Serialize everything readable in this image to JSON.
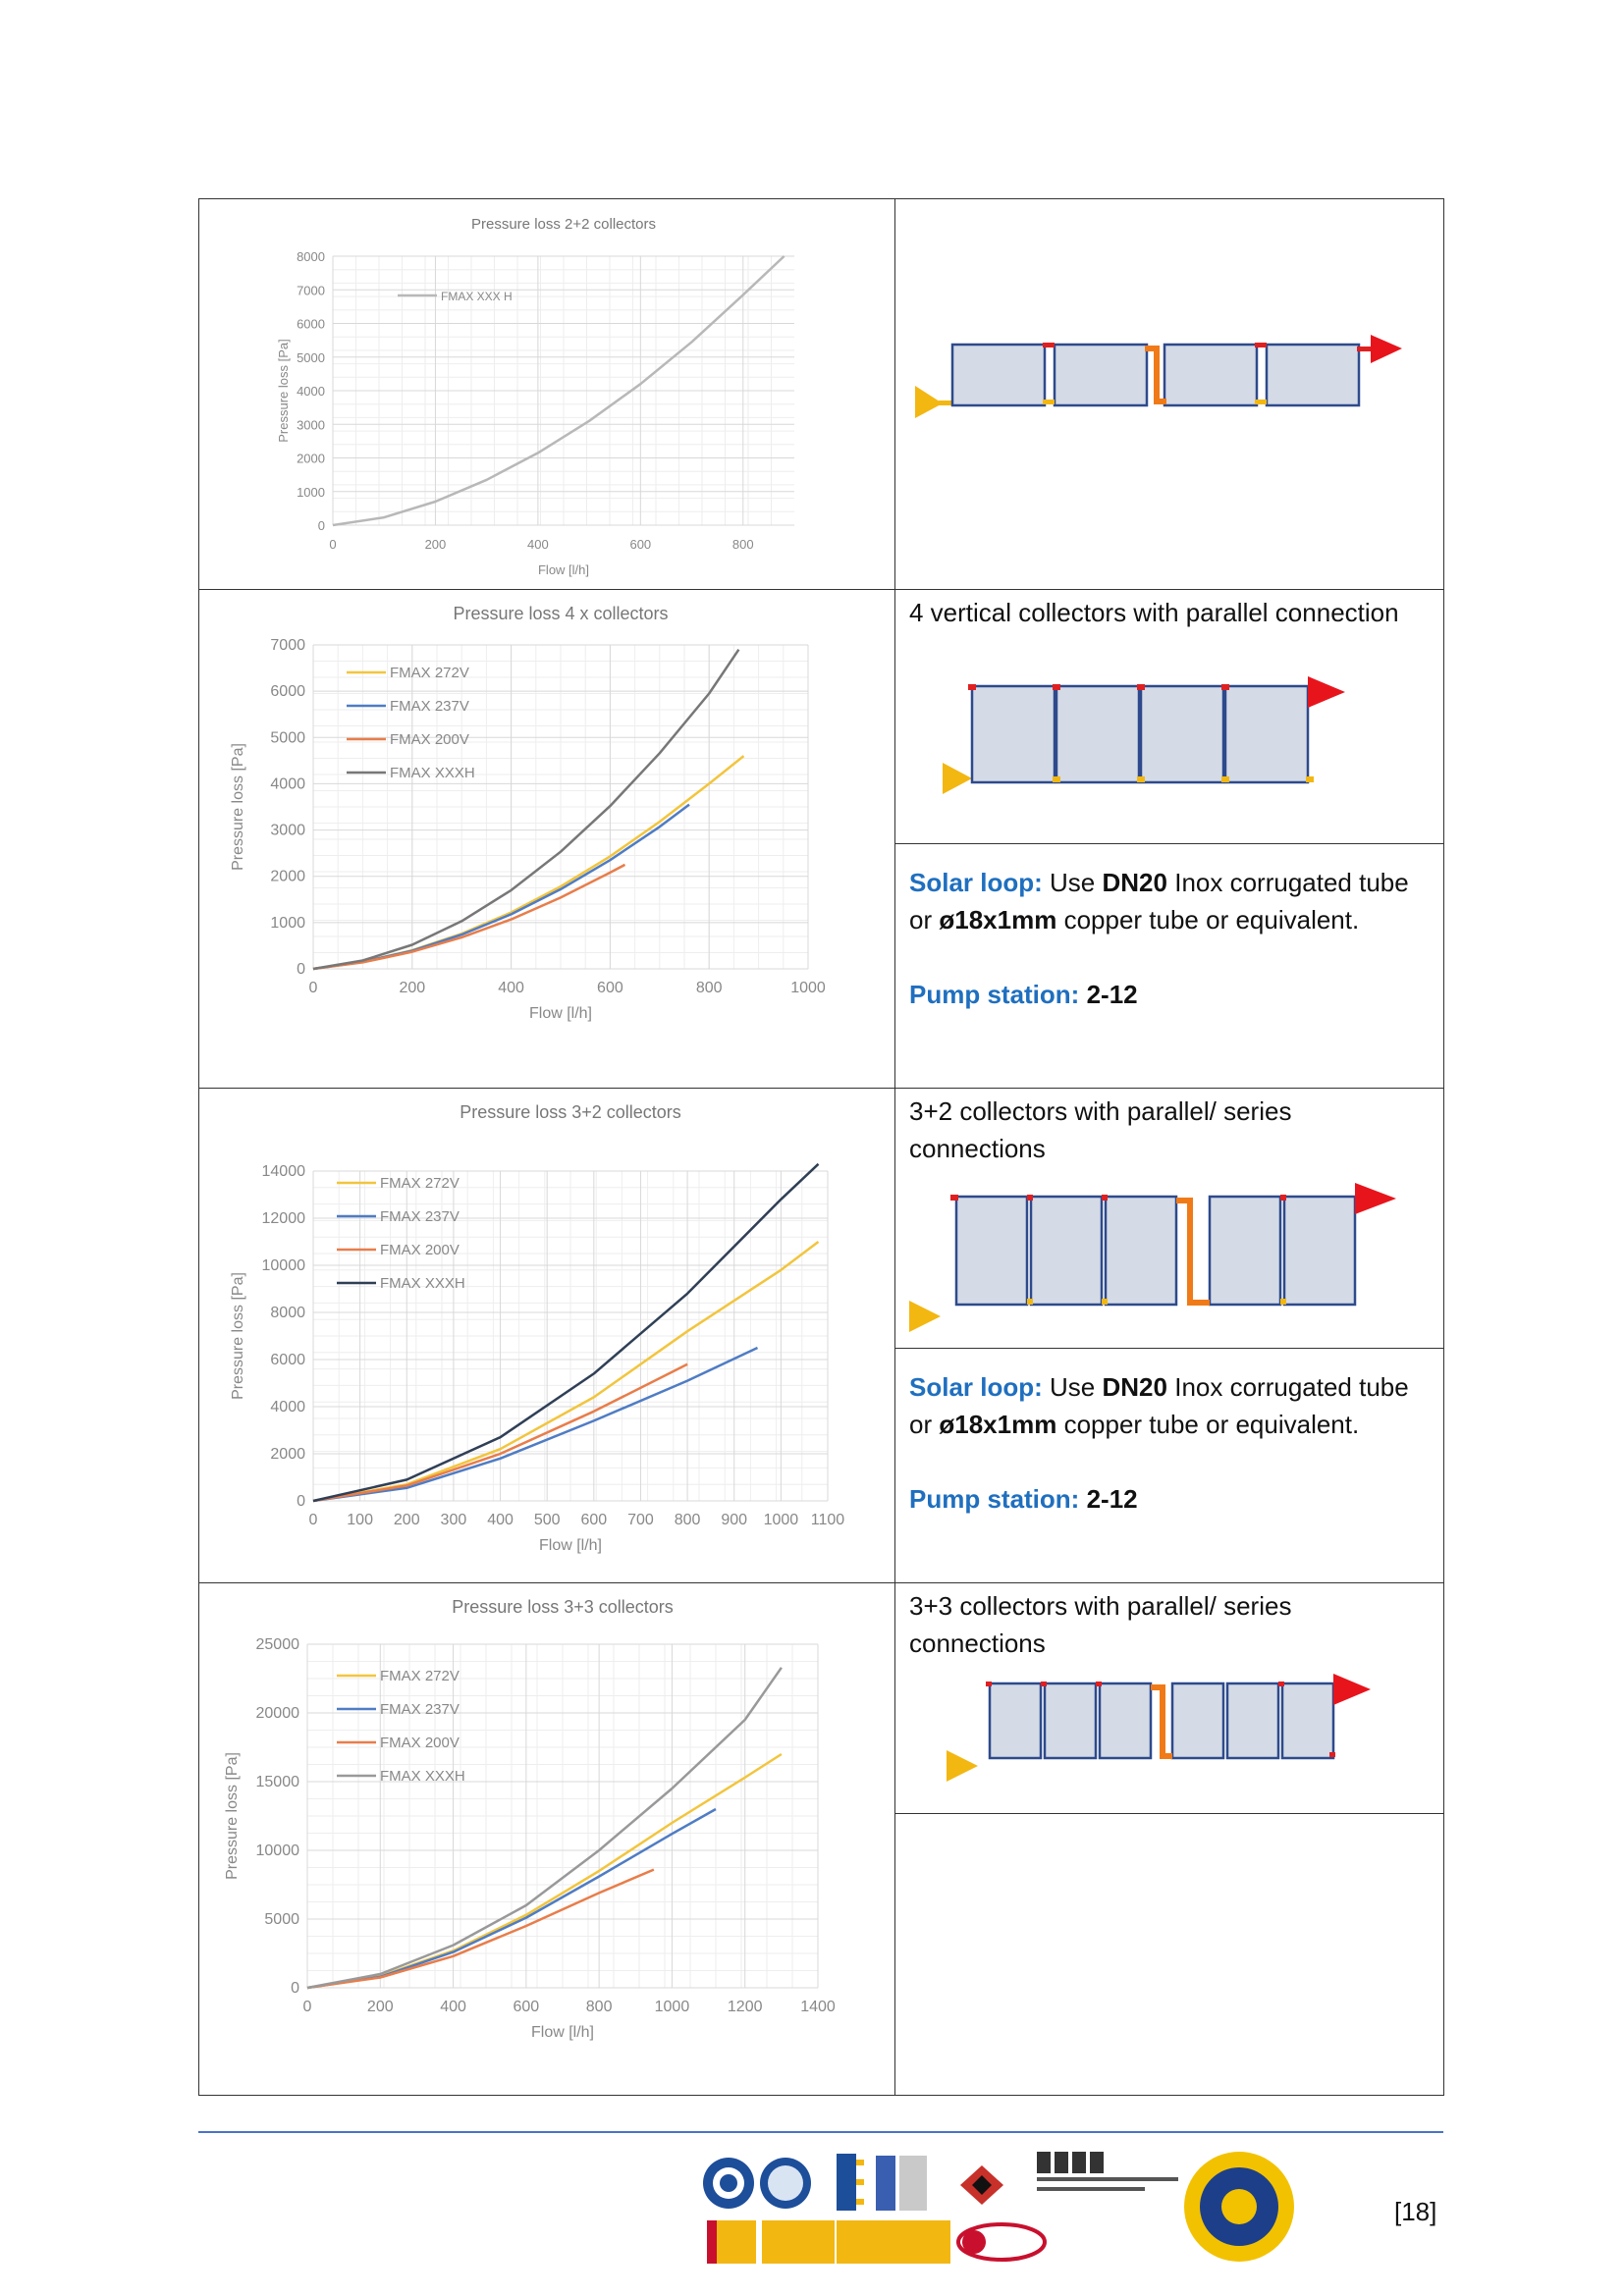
{
  "page": {
    "number": "[18]"
  },
  "rows": [
    {
      "chart": {
        "title": "Pressure loss 2+2 collectors",
        "xlabel": "Flow [l/h]",
        "ylabel": "Pressure loss [Pa]",
        "xticks": [
          "0",
          "200",
          "400",
          "600",
          "800"
        ],
        "yticks": [
          "0",
          "1000",
          "2000",
          "3000",
          "4000",
          "5000",
          "6000",
          "7000",
          "8000"
        ],
        "legend": [
          "FMAX XXX H"
        ]
      },
      "description": "",
      "solar_loop": null
    },
    {
      "chart": {
        "title": "Pressure loss 4 x collectors",
        "xlabel": "Flow [l/h]",
        "ylabel": "Pressure loss [Pa]",
        "xticks": [
          "0",
          "200",
          "400",
          "600",
          "800",
          "1000"
        ],
        "yticks": [
          "0",
          "1000",
          "2000",
          "3000",
          "4000",
          "5000",
          "6000",
          "7000"
        ],
        "legend": [
          "FMAX 272V",
          "FMAX 237V",
          "FMAX 200V",
          "FMAX XXXH"
        ]
      },
      "description": "4 vertical collectors with parallel connection",
      "solar_loop": {
        "label": "Solar loop:",
        "use": "Use",
        "dn": "DN20",
        "text1": "Inox corrugated tube or",
        "copper": "ø18x1mm",
        "text2": "copper tube or equivalent.",
        "pump_label": "Pump station:",
        "pump_value": "2-12"
      }
    },
    {
      "chart": {
        "title": "Pressure loss 3+2 collectors",
        "xlabel": "Flow [l/h]",
        "ylabel": "Pressure loss [Pa]",
        "xticks": [
          "0",
          "100",
          "200",
          "300",
          "400",
          "500",
          "600",
          "700",
          "800",
          "900",
          "1000",
          "1100"
        ],
        "yticks": [
          "0",
          "2000",
          "4000",
          "6000",
          "8000",
          "10000",
          "12000",
          "14000"
        ],
        "legend": [
          "FMAX 272V",
          "FMAX 237V",
          "FMAX 200V",
          "FMAX XXXH"
        ]
      },
      "description": "3+2 collectors with parallel/ series connections",
      "solar_loop": {
        "label": "Solar loop:",
        "use": "Use",
        "dn": "DN20",
        "text1": "Inox corrugated tube or",
        "copper": "ø18x1mm",
        "text2": "copper tube or equivalent.",
        "pump_label": "Pump station:",
        "pump_value": "2-12"
      }
    },
    {
      "chart": {
        "title": "Pressure loss 3+3 collectors",
        "xlabel": "Flow [l/h]",
        "ylabel": "Pressure loss [Pa]",
        "xticks": [
          "0",
          "200",
          "400",
          "600",
          "800",
          "1000",
          "1200",
          "1400"
        ],
        "yticks": [
          "0",
          "5000",
          "10000",
          "15000",
          "20000",
          "25000"
        ],
        "legend": [
          "FMAX 272V",
          "FMAX 237V",
          "FMAX 200V",
          "FMAX XXXH"
        ]
      },
      "description": "3+3 collectors with parallel/ series connections",
      "solar_loop": null
    }
  ],
  "chart_data": [
    {
      "type": "line",
      "title": "Pressure loss 2+2 collectors",
      "xlabel": "Flow [l/h]",
      "ylabel": "Pressure loss [Pa]",
      "xlim": [
        0,
        900
      ],
      "ylim": [
        0,
        8000
      ],
      "grid": true,
      "legend": "top-left",
      "series": [
        {
          "name": "FMAX XXX H",
          "color": "#b8b8b8",
          "x": [
            0,
            100,
            200,
            300,
            400,
            500,
            600,
            700,
            800,
            880
          ],
          "y": [
            0,
            230,
            700,
            1350,
            2150,
            3100,
            4200,
            5450,
            6850,
            8000
          ]
        }
      ]
    },
    {
      "type": "line",
      "title": "Pressure loss 4 x collectors",
      "xlabel": "Flow [l/h]",
      "ylabel": "Pressure loss [Pa]",
      "xlim": [
        0,
        1000
      ],
      "ylim": [
        0,
        7000
      ],
      "grid": true,
      "legend": "top-left",
      "series": [
        {
          "name": "FMAX 272V",
          "color": "#f2c53d",
          "x": [
            0,
            100,
            200,
            300,
            400,
            500,
            600,
            700,
            800,
            870
          ],
          "y": [
            0,
            150,
            400,
            760,
            1220,
            1780,
            2430,
            3180,
            4000,
            4600
          ]
        },
        {
          "name": "FMAX 237V",
          "color": "#4f7cc4",
          "x": [
            0,
            100,
            200,
            300,
            400,
            500,
            600,
            700,
            760
          ],
          "y": [
            0,
            150,
            390,
            740,
            1180,
            1720,
            2350,
            3070,
            3550
          ]
        },
        {
          "name": "FMAX 200V",
          "color": "#e87d4a",
          "x": [
            0,
            100,
            200,
            300,
            400,
            500,
            600,
            630
          ],
          "y": [
            0,
            140,
            370,
            680,
            1070,
            1540,
            2080,
            2250
          ]
        },
        {
          "name": "FMAX XXXH",
          "color": "#777777",
          "x": [
            0,
            100,
            200,
            300,
            400,
            500,
            600,
            700,
            800,
            860
          ],
          "y": [
            0,
            180,
            520,
            1030,
            1700,
            2530,
            3520,
            4660,
            5950,
            6900
          ]
        }
      ]
    },
    {
      "type": "line",
      "title": "Pressure loss 3+2 collectors",
      "xlabel": "Flow [l/h]",
      "ylabel": "Pressure loss [Pa]",
      "xlim": [
        0,
        1100
      ],
      "ylim": [
        0,
        14000
      ],
      "grid": true,
      "legend": "top-left",
      "series": [
        {
          "name": "FMAX 272V",
          "color": "#f2c53d",
          "x": [
            0,
            200,
            400,
            600,
            800,
            1000,
            1080
          ],
          "y": [
            0,
            700,
            2200,
            4400,
            7200,
            9800,
            11000
          ]
        },
        {
          "name": "FMAX 237V",
          "color": "#4f7cc4",
          "x": [
            0,
            200,
            400,
            600,
            800,
            950
          ],
          "y": [
            0,
            550,
            1800,
            3400,
            5100,
            6500
          ]
        },
        {
          "name": "FMAX 200V",
          "color": "#e87d4a",
          "x": [
            0,
            200,
            400,
            600,
            800
          ],
          "y": [
            0,
            650,
            2000,
            3800,
            5800
          ]
        },
        {
          "name": "FMAX XXXH",
          "color": "#2f3f56",
          "x": [
            0,
            200,
            400,
            600,
            800,
            1000,
            1080
          ],
          "y": [
            0,
            900,
            2700,
            5400,
            8800,
            12800,
            14300
          ]
        }
      ]
    },
    {
      "type": "line",
      "title": "Pressure loss 3+3 collectors",
      "xlabel": "Flow [l/h]",
      "ylabel": "Pressure loss [Pa]",
      "xlim": [
        0,
        1400
      ],
      "ylim": [
        0,
        25000
      ],
      "grid": true,
      "legend": "top-left",
      "series": [
        {
          "name": "FMAX 272V",
          "color": "#f2c53d",
          "x": [
            0,
            200,
            400,
            600,
            800,
            1000,
            1200,
            1300
          ],
          "y": [
            0,
            850,
            2700,
            5300,
            8500,
            12000,
            15300,
            17000
          ]
        },
        {
          "name": "FMAX 237V",
          "color": "#4f7cc4",
          "x": [
            0,
            200,
            400,
            600,
            800,
            1000,
            1120
          ],
          "y": [
            0,
            800,
            2600,
            5100,
            8100,
            11200,
            13000
          ]
        },
        {
          "name": "FMAX 200V",
          "color": "#e87d4a",
          "x": [
            0,
            200,
            400,
            600,
            800,
            950
          ],
          "y": [
            0,
            750,
            2300,
            4500,
            6900,
            8600
          ]
        },
        {
          "name": "FMAX XXXH",
          "color": "#999999",
          "x": [
            0,
            200,
            400,
            600,
            800,
            1000,
            1200,
            1300
          ],
          "y": [
            0,
            1000,
            3100,
            6000,
            10000,
            14500,
            19500,
            23300
          ]
        }
      ]
    }
  ]
}
